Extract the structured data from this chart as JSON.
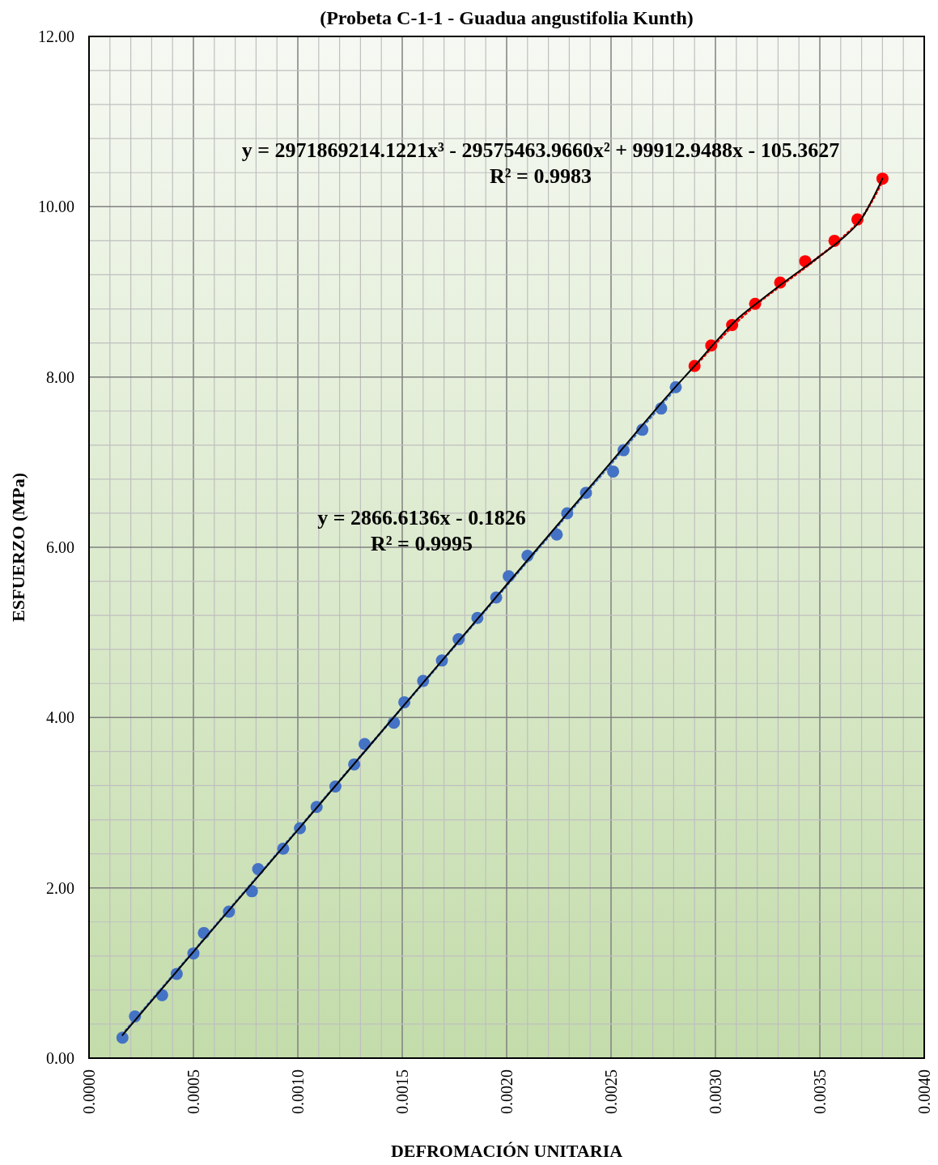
{
  "chart_data": {
    "type": "scatter",
    "title": "(Probeta C-1-1 - Guadua angustifolia Kunth)",
    "xlabel": "DEFROMACIÓN UNITARIA",
    "ylabel": "ESFUERZO (MPa)",
    "xlim": [
      0,
      0.004
    ],
    "ylim": [
      0,
      12
    ],
    "xticks": [
      {
        "value": 0,
        "label": "0.0000"
      },
      {
        "value": 0.0001,
        "label": null
      },
      {
        "value": 0.0002,
        "label": null
      },
      {
        "value": 0.0003,
        "label": null
      },
      {
        "value": 0.0004,
        "label": null
      },
      {
        "value": 0.0005,
        "label": "0.0005"
      },
      {
        "value": 0.0006,
        "label": null
      },
      {
        "value": 0.0007,
        "label": null
      },
      {
        "value": 0.0008,
        "label": null
      },
      {
        "value": 0.0009,
        "label": null
      },
      {
        "value": 0.001,
        "label": "0.0010"
      },
      {
        "value": 0.0011,
        "label": null
      },
      {
        "value": 0.0012,
        "label": null
      },
      {
        "value": 0.0013,
        "label": null
      },
      {
        "value": 0.0014,
        "label": null
      },
      {
        "value": 0.0015,
        "label": "0.0015"
      },
      {
        "value": 0.0016,
        "label": null
      },
      {
        "value": 0.0017,
        "label": null
      },
      {
        "value": 0.0018,
        "label": null
      },
      {
        "value": 0.0019,
        "label": null
      },
      {
        "value": 0.002,
        "label": "0.0020"
      },
      {
        "value": 0.0021,
        "label": null
      },
      {
        "value": 0.0022,
        "label": null
      },
      {
        "value": 0.0023,
        "label": null
      },
      {
        "value": 0.0024,
        "label": null
      },
      {
        "value": 0.0025,
        "label": "0.0025"
      },
      {
        "value": 0.0026,
        "label": null
      },
      {
        "value": 0.0027,
        "label": null
      },
      {
        "value": 0.0028,
        "label": null
      },
      {
        "value": 0.0029,
        "label": null
      },
      {
        "value": 0.003,
        "label": "0.0030"
      },
      {
        "value": 0.0031,
        "label": null
      },
      {
        "value": 0.0032,
        "label": null
      },
      {
        "value": 0.0033,
        "label": null
      },
      {
        "value": 0.0034,
        "label": null
      },
      {
        "value": 0.0035,
        "label": "0.0035"
      },
      {
        "value": 0.0036,
        "label": null
      },
      {
        "value": 0.0037,
        "label": null
      },
      {
        "value": 0.0038,
        "label": null
      },
      {
        "value": 0.0039,
        "label": null
      },
      {
        "value": 0.004,
        "label": "0.0040"
      }
    ],
    "yticks": [
      {
        "value": 0,
        "label": "0.00"
      },
      {
        "value": 0.4,
        "label": null
      },
      {
        "value": 0.8,
        "label": null
      },
      {
        "value": 1.2,
        "label": null
      },
      {
        "value": 1.6,
        "label": null
      },
      {
        "value": 2,
        "label": "2.00"
      },
      {
        "value": 2.4,
        "label": null
      },
      {
        "value": 2.8,
        "label": null
      },
      {
        "value": 3.2,
        "label": null
      },
      {
        "value": 3.6,
        "label": null
      },
      {
        "value": 4,
        "label": "4.00"
      },
      {
        "value": 4.4,
        "label": null
      },
      {
        "value": 4.8,
        "label": null
      },
      {
        "value": 5.2,
        "label": null
      },
      {
        "value": 5.6,
        "label": null
      },
      {
        "value": 6,
        "label": "6.00"
      },
      {
        "value": 6.4,
        "label": null
      },
      {
        "value": 6.8,
        "label": null
      },
      {
        "value": 7.2,
        "label": null
      },
      {
        "value": 7.6,
        "label": null
      },
      {
        "value": 8,
        "label": "8.00"
      },
      {
        "value": 8.4,
        "label": null
      },
      {
        "value": 8.8,
        "label": null
      },
      {
        "value": 9.2,
        "label": null
      },
      {
        "value": 9.6,
        "label": null
      },
      {
        "value": 10,
        "label": "10.00"
      },
      {
        "value": 10.4,
        "label": null
      },
      {
        "value": 10.8,
        "label": null
      },
      {
        "value": 11.2,
        "label": null
      },
      {
        "value": 11.6,
        "label": null
      },
      {
        "value": 12,
        "label": "12.00"
      }
    ],
    "grid": true,
    "marker": "circle",
    "annotations": [
      "y = 2971869214.1221x³ - 29575463.9660x² + 99912.9488x - 105.3627",
      "R² = 0.9983",
      "y = 2866.6136x - 0.1826",
      "R² = 0.9995"
    ],
    "series": [
      {
        "type": "line",
        "color": "#4472c4",
        "line_style": "dotted",
        "marker": "none",
        "x": [
          0.00016,
          0.00281
        ],
        "values": [
          0.28,
          7.87
        ]
      },
      {
        "type": "line",
        "color": "#ff0000",
        "line_style": "dotted",
        "marker": "none",
        "x": [
          0.0029,
          0.003,
          0.0031,
          0.0032,
          0.0033,
          0.0034,
          0.0035,
          0.0036,
          0.0037,
          0.0038
        ],
        "values": [
          8.12,
          8.39,
          8.64,
          8.86,
          9.05,
          9.23,
          9.42,
          9.62,
          9.87,
          10.3
        ]
      },
      {
        "type": "line",
        "color": "#000000",
        "line_style": "solid",
        "marker": "none",
        "x": [
          0.00016,
          0.0005,
          0.001,
          0.0015,
          0.002,
          0.0025,
          0.0028,
          0.0029,
          0.003,
          0.0031,
          0.0032,
          0.0033,
          0.0034,
          0.0035,
          0.0036,
          0.0037,
          0.0038
        ],
        "values": [
          0.27,
          1.25,
          2.68,
          4.12,
          5.56,
          7.0,
          7.86,
          8.13,
          8.41,
          8.67,
          8.87,
          9.06,
          9.24,
          9.42,
          9.61,
          9.86,
          10.33
        ]
      },
      {
        "color": "#4472c4",
        "x": [
          0.00016,
          0.00022,
          0.00035,
          0.00042,
          0.0005,
          0.00055,
          0.00067,
          0.00078,
          0.00081,
          0.00093,
          0.00101,
          0.00109,
          0.00118,
          0.00127,
          0.00132,
          0.00146,
          0.00151,
          0.0016,
          0.00169,
          0.00177,
          0.00186,
          0.00195,
          0.00201,
          0.0021,
          0.00224,
          0.00229,
          0.00238,
          0.00251,
          0.00256,
          0.00265,
          0.00274,
          0.00281
        ],
        "values": [
          0.24,
          0.49,
          0.74,
          0.99,
          1.23,
          1.47,
          1.72,
          1.96,
          2.22,
          2.46,
          2.7,
          2.95,
          3.19,
          3.45,
          3.69,
          3.94,
          4.18,
          4.43,
          4.67,
          4.92,
          5.17,
          5.41,
          5.66,
          5.9,
          6.15,
          6.4,
          6.64,
          6.89,
          7.14,
          7.38,
          7.63,
          7.88
        ]
      },
      {
        "color": "#ff0000",
        "x": [
          0.0029,
          0.00298,
          0.00308,
          0.00319,
          0.00331,
          0.00343,
          0.00357,
          0.00368,
          0.0038
        ],
        "values": [
          8.13,
          8.37,
          8.61,
          8.86,
          9.11,
          9.36,
          9.6,
          9.85,
          10.33
        ]
      }
    ]
  }
}
